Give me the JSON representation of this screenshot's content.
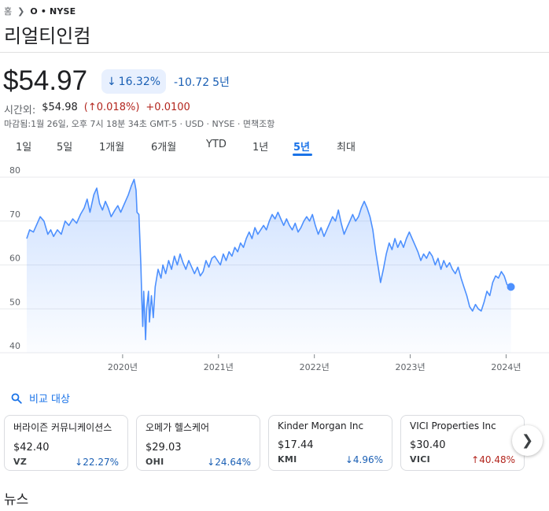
{
  "breadcrumb": {
    "home": "홈",
    "ticker": "O",
    "separator": "•",
    "exchange": "NYSE"
  },
  "company_name": "리얼티인컴",
  "price": "$54.97",
  "change": {
    "percent": "16.32%",
    "absolute": "-10.72",
    "period": "5년"
  },
  "after_hours": {
    "label": "시간외:",
    "price": "$54.98",
    "percent": "0.018%",
    "absolute": "+0.0100"
  },
  "closing_info": "마감됨:1월 26일, 오후 7시 18분 34초 GMT-5 · USD · NYSE · 면책조항",
  "ranges": [
    "1일",
    "5일",
    "1개월",
    "6개월",
    "YTD",
    "1년",
    "5년",
    "최대"
  ],
  "active_range": "5년",
  "compare_label": "비교 대상",
  "cards": [
    {
      "name": "버라이즌 커뮤니케이션스",
      "price": "$42.40",
      "ticker": "VZ",
      "change": "22.27%",
      "direction": "down"
    },
    {
      "name": "오메가 헬스케어",
      "price": "$29.03",
      "ticker": "OHI",
      "change": "24.64%",
      "direction": "down"
    },
    {
      "name": "Kinder Morgan Inc",
      "price": "$17.44",
      "ticker": "KMI",
      "change": "4.96%",
      "direction": "down"
    },
    {
      "name": "VICI Properties Inc",
      "price": "$30.40",
      "ticker": "VICI",
      "change": "40.48%",
      "direction": "up"
    }
  ],
  "news_heading": "뉴스",
  "colors": {
    "line": "#4d90fe",
    "down": "#1a5fb4",
    "up": "#b3261e",
    "accent": "#1a73e8"
  },
  "chart_data": {
    "type": "area",
    "title": "",
    "xlabel": "",
    "ylabel": "",
    "x_ticks": [
      "2020년",
      "2021년",
      "2022년",
      "2023년",
      "2024년"
    ],
    "y_ticks": [
      "80",
      "70",
      "60",
      "50",
      "40"
    ],
    "ylim": [
      40,
      80
    ],
    "xlim": [
      2019.0,
      2024.07
    ],
    "grid": "horizontal",
    "series": [
      {
        "points": [
          [
            2019.0,
            66
          ],
          [
            2019.03,
            68
          ],
          [
            2019.07,
            67.5
          ],
          [
            2019.1,
            69
          ],
          [
            2019.14,
            71
          ],
          [
            2019.18,
            70
          ],
          [
            2019.22,
            67
          ],
          [
            2019.25,
            68
          ],
          [
            2019.28,
            66.5
          ],
          [
            2019.32,
            68
          ],
          [
            2019.36,
            67
          ],
          [
            2019.4,
            70
          ],
          [
            2019.44,
            69
          ],
          [
            2019.48,
            70.5
          ],
          [
            2019.52,
            69.5
          ],
          [
            2019.56,
            71.5
          ],
          [
            2019.6,
            73
          ],
          [
            2019.63,
            75
          ],
          [
            2019.66,
            72
          ],
          [
            2019.7,
            76
          ],
          [
            2019.73,
            77.5
          ],
          [
            2019.76,
            74
          ],
          [
            2019.79,
            72.5
          ],
          [
            2019.82,
            74.5
          ],
          [
            2019.85,
            73
          ],
          [
            2019.88,
            71
          ],
          [
            2019.92,
            72.5
          ],
          [
            2019.95,
            73.5
          ],
          [
            2019.98,
            72
          ],
          [
            2020.02,
            74
          ],
          [
            2020.06,
            76
          ],
          [
            2020.09,
            78
          ],
          [
            2020.12,
            79.5
          ],
          [
            2020.14,
            77
          ],
          [
            2020.15,
            72
          ],
          [
            2020.17,
            71.5
          ],
          [
            2020.18,
            66
          ],
          [
            2020.19,
            60
          ],
          [
            2020.2,
            52
          ],
          [
            2020.21,
            46
          ],
          [
            2020.22,
            54
          ],
          [
            2020.23,
            49
          ],
          [
            2020.24,
            43
          ],
          [
            2020.25,
            50
          ],
          [
            2020.27,
            54
          ],
          [
            2020.28,
            47
          ],
          [
            2020.3,
            53
          ],
          [
            2020.32,
            48
          ],
          [
            2020.34,
            55
          ],
          [
            2020.37,
            59
          ],
          [
            2020.4,
            57
          ],
          [
            2020.42,
            60
          ],
          [
            2020.45,
            58
          ],
          [
            2020.48,
            61
          ],
          [
            2020.51,
            59
          ],
          [
            2020.54,
            62
          ],
          [
            2020.57,
            60
          ],
          [
            2020.6,
            62.5
          ],
          [
            2020.63,
            60.5
          ],
          [
            2020.66,
            59
          ],
          [
            2020.69,
            61
          ],
          [
            2020.72,
            59.5
          ],
          [
            2020.75,
            58
          ],
          [
            2020.78,
            59.5
          ],
          [
            2020.81,
            57.5
          ],
          [
            2020.84,
            58.5
          ],
          [
            2020.87,
            61
          ],
          [
            2020.9,
            59.5
          ],
          [
            2020.93,
            61.5
          ],
          [
            2020.96,
            62
          ],
          [
            2020.99,
            61
          ],
          [
            2021.02,
            60
          ],
          [
            2021.05,
            62.5
          ],
          [
            2021.08,
            61
          ],
          [
            2021.11,
            63
          ],
          [
            2021.14,
            62
          ],
          [
            2021.17,
            64
          ],
          [
            2021.2,
            63
          ],
          [
            2021.23,
            65
          ],
          [
            2021.26,
            64
          ],
          [
            2021.29,
            66
          ],
          [
            2021.32,
            67.5
          ],
          [
            2021.35,
            66
          ],
          [
            2021.38,
            68.5
          ],
          [
            2021.41,
            67
          ],
          [
            2021.44,
            68
          ],
          [
            2021.47,
            69
          ],
          [
            2021.5,
            68
          ],
          [
            2021.53,
            70
          ],
          [
            2021.56,
            71.5
          ],
          [
            2021.59,
            70.5
          ],
          [
            2021.62,
            72
          ],
          [
            2021.65,
            70.5
          ],
          [
            2021.68,
            69
          ],
          [
            2021.71,
            70.5
          ],
          [
            2021.74,
            69
          ],
          [
            2021.77,
            68
          ],
          [
            2021.8,
            69.5
          ],
          [
            2021.83,
            67.5
          ],
          [
            2021.86,
            68.5
          ],
          [
            2021.89,
            70
          ],
          [
            2021.92,
            71
          ],
          [
            2021.95,
            70
          ],
          [
            2021.98,
            71.5
          ],
          [
            2022.01,
            69
          ],
          [
            2022.04,
            67
          ],
          [
            2022.07,
            68.5
          ],
          [
            2022.1,
            66.5
          ],
          [
            2022.13,
            68
          ],
          [
            2022.16,
            69.5
          ],
          [
            2022.19,
            71
          ],
          [
            2022.22,
            70
          ],
          [
            2022.25,
            72.5
          ],
          [
            2022.28,
            69.5
          ],
          [
            2022.31,
            67
          ],
          [
            2022.34,
            68.5
          ],
          [
            2022.37,
            70
          ],
          [
            2022.4,
            71.5
          ],
          [
            2022.43,
            70
          ],
          [
            2022.46,
            71
          ],
          [
            2022.49,
            73
          ],
          [
            2022.52,
            74.5
          ],
          [
            2022.55,
            73
          ],
          [
            2022.58,
            71
          ],
          [
            2022.61,
            68
          ],
          [
            2022.64,
            63
          ],
          [
            2022.67,
            59
          ],
          [
            2022.69,
            56
          ],
          [
            2022.72,
            59
          ],
          [
            2022.75,
            62.5
          ],
          [
            2022.78,
            65
          ],
          [
            2022.81,
            63.5
          ],
          [
            2022.84,
            66
          ],
          [
            2022.87,
            64
          ],
          [
            2022.9,
            65.5
          ],
          [
            2022.93,
            64
          ],
          [
            2022.96,
            66
          ],
          [
            2022.99,
            67.5
          ],
          [
            2023.02,
            66
          ],
          [
            2023.05,
            64.5
          ],
          [
            2023.08,
            63
          ],
          [
            2023.11,
            61
          ],
          [
            2023.14,
            62.5
          ],
          [
            2023.17,
            61.5
          ],
          [
            2023.2,
            63
          ],
          [
            2023.23,
            62
          ],
          [
            2023.26,
            60
          ],
          [
            2023.29,
            61.5
          ],
          [
            2023.32,
            59
          ],
          [
            2023.35,
            61
          ],
          [
            2023.38,
            59.5
          ],
          [
            2023.41,
            60.5
          ],
          [
            2023.44,
            59
          ],
          [
            2023.47,
            58
          ],
          [
            2023.5,
            59.5
          ],
          [
            2023.53,
            57
          ],
          [
            2023.56,
            55
          ],
          [
            2023.59,
            53
          ],
          [
            2023.62,
            50.5
          ],
          [
            2023.65,
            49.5
          ],
          [
            2023.68,
            51
          ],
          [
            2023.71,
            50
          ],
          [
            2023.74,
            49.5
          ],
          [
            2023.77,
            51.5
          ],
          [
            2023.8,
            54
          ],
          [
            2023.83,
            53
          ],
          [
            2023.86,
            56
          ],
          [
            2023.89,
            57.5
          ],
          [
            2023.92,
            57
          ],
          [
            2023.95,
            58.5
          ],
          [
            2023.98,
            57.5
          ],
          [
            2024.01,
            55.5
          ],
          [
            2024.05,
            55
          ]
        ]
      }
    ]
  }
}
